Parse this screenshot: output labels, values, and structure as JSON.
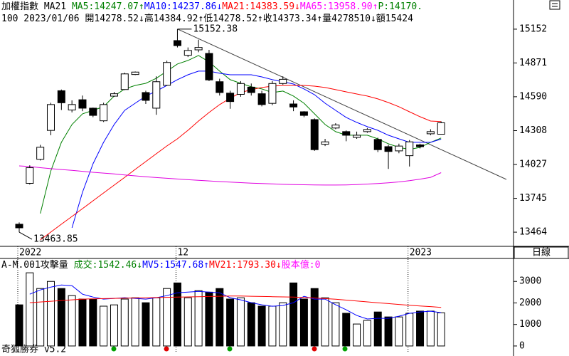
{
  "period": "日線",
  "brand": "奇狐勝券 v5.2",
  "chart_data": [
    {
      "type": "candlestick",
      "header": [
        [
          {
            "text": "加權指數 MA21 ",
            "color": "#000000"
          },
          {
            "text": "MA5:14247.07↑",
            "color": "#008000"
          },
          {
            "text": "MA10:14237.86↓",
            "color": "#0000ff"
          },
          {
            "text": "MA21:14383.59↓",
            "color": "#ff0000"
          },
          {
            "text": "MA65:13958.90↑",
            "color": "#ff00ff"
          },
          {
            "text": "P:14170.",
            "color": "#008000"
          }
        ],
        [
          {
            "text": "100 2023/01/06 開14278.52↓高14384.92↑低14278.52↑收14373.34↑量4278510↓額15424",
            "color": "#000000"
          }
        ]
      ],
      "categories": [
        "2022",
        null,
        null,
        null,
        null,
        null,
        null,
        null,
        null,
        null,
        null,
        null,
        null,
        null,
        null,
        "12",
        null,
        null,
        null,
        null,
        null,
        null,
        null,
        null,
        null,
        null,
        null,
        null,
        null,
        null,
        null,
        null,
        null,
        null,
        null,
        null,
        null,
        "2023",
        null,
        null,
        null
      ],
      "open": [
        13530,
        13870,
        14070,
        14310,
        14640,
        14480,
        14565,
        14495,
        14390,
        14595,
        14650,
        14775,
        14625,
        14495,
        14685,
        15057,
        14935,
        14980,
        14950,
        14715,
        14620,
        14610,
        14670,
        14615,
        14535,
        14700,
        14530,
        14465,
        14400,
        14195,
        14330,
        14300,
        14252,
        14300,
        14235,
        14175,
        14140,
        14100,
        14190,
        14282,
        14278.52
      ],
      "high": [
        13545,
        14020,
        14190,
        14540,
        14650,
        14560,
        14600,
        14500,
        14540,
        14630,
        14790,
        14800,
        14640,
        14760,
        14890,
        15152.38,
        15000,
        15065,
        14980,
        14740,
        14640,
        14720,
        14700,
        14640,
        14720,
        14760,
        14560,
        14470,
        14410,
        14240,
        14370,
        14310,
        14300,
        14330,
        14250,
        14190,
        14200,
        14230,
        14200,
        14320,
        14384.92
      ],
      "low": [
        13463.85,
        13860,
        14060,
        14270,
        14480,
        14460,
        14470,
        14420,
        14380,
        14590,
        14645,
        14770,
        14530,
        14440,
        14680,
        15000,
        14920,
        14960,
        14720,
        14600,
        14490,
        14590,
        14600,
        14510,
        14520,
        14690,
        14470,
        14420,
        14140,
        14180,
        14320,
        14220,
        14240,
        14290,
        14130,
        13990,
        14120,
        14010,
        14160,
        14270,
        14278.52
      ],
      "close": [
        13500,
        14000,
        14170,
        14525,
        14540,
        14525,
        14495,
        14435,
        14525,
        14615,
        14780,
        14795,
        14560,
        14715,
        14875,
        15015,
        14975,
        15000,
        14730,
        14625,
        14550,
        14700,
        14625,
        14525,
        14700,
        14735,
        14505,
        14435,
        14150,
        14215,
        14355,
        14270,
        14270,
        14318,
        14150,
        14135,
        14180,
        14215,
        14175,
        14300,
        14373.34
      ],
      "up_color": "#ffffff",
      "down_color": "#000000",
      "series": [
        {
          "name": "MA5",
          "color": "#008000",
          "values": [
            null,
            null,
            13619,
            13974,
            14211,
            14359,
            14448,
            14477,
            14507,
            14596,
            14655,
            14684,
            14702,
            14744,
            14803,
            14862,
            14892,
            14933,
            14880,
            14803,
            14732,
            14702,
            14673,
            14655,
            14625,
            14637,
            14596,
            14536,
            14448,
            14359,
            14300,
            14270,
            14270,
            14270,
            14240,
            14199,
            14169,
            14152,
            14169,
            14211,
            14247.07
          ]
        },
        {
          "name": "MA10",
          "color": "#0000ff",
          "values": [
            null,
            null,
            null,
            null,
            null,
            13500,
            13796,
            14033,
            14211,
            14359,
            14477,
            14536,
            14596,
            14637,
            14684,
            14732,
            14773,
            14803,
            14803,
            14785,
            14773,
            14773,
            14773,
            14755,
            14732,
            14714,
            14696,
            14655,
            14607,
            14536,
            14477,
            14418,
            14377,
            14341,
            14311,
            14270,
            14240,
            14211,
            14211,
            14211,
            14237.86
          ]
        },
        {
          "name": "MA21",
          "color": "#ff0000",
          "values": [
            null,
            null,
            13400,
            13465,
            13530,
            13595,
            13660,
            13725,
            13790,
            13855,
            13920,
            13986,
            14051,
            14116,
            14181,
            14240,
            14311,
            14388,
            14459,
            14525,
            14578,
            14625,
            14649,
            14667,
            14678,
            14684,
            14684,
            14684,
            14678,
            14667,
            14649,
            14631,
            14613,
            14596,
            14572,
            14542,
            14507,
            14465,
            14424,
            14388,
            14383.59
          ]
        },
        {
          "name": "MA65",
          "color": "#e000e0",
          "values": [
            14015,
            14010,
            14000,
            13992,
            13985,
            13978,
            13970,
            13962,
            13955,
            13948,
            13940,
            13932,
            13925,
            13918,
            13912,
            13906,
            13900,
            13895,
            13890,
            13885,
            13880,
            13876,
            13872,
            13868,
            13865,
            13862,
            13860,
            13858,
            13857,
            13856,
            13856,
            13857,
            13860,
            13864,
            13868,
            13874,
            13882,
            13892,
            13905,
            13920,
            13958.9
          ]
        }
      ],
      "annotations": [
        "15152.38",
        "13463.85"
      ],
      "ylim": [
        13352,
        15276
      ],
      "yticks": [
        15152,
        14871,
        14590,
        14308,
        14027,
        13745,
        13464
      ]
    },
    {
      "type": "bar",
      "header": [
        [
          {
            "text": "A-M.001攻擊量 ",
            "color": "#000000"
          },
          {
            "text": "成交:1542.46↓",
            "color": "#008000"
          },
          {
            "text": "MV5:1547.68↑",
            "color": "#0000ff"
          },
          {
            "text": "MV21:1793.30↓",
            "color": "#ff0000"
          },
          {
            "text": "股本億:0",
            "color": "#ff00ff"
          }
        ]
      ],
      "values": [
        1912,
        3400,
        2670,
        3000,
        2670,
        2340,
        2180,
        2180,
        1850,
        1910,
        2180,
        2240,
        2010,
        2240,
        2670,
        2930,
        2240,
        2570,
        2500,
        2670,
        2180,
        2240,
        2010,
        1850,
        1850,
        2010,
        2930,
        2180,
        2670,
        2240,
        2010,
        1520,
        1020,
        1190,
        1580,
        1350,
        1350,
        1520,
        1620,
        1620,
        1542.46
      ],
      "series": [
        {
          "name": "MV5",
          "color": "#0000ff",
          "values": [
            null,
            2407,
            2605,
            2736,
            2835,
            2802,
            2407,
            2275,
            2176,
            2209,
            2242,
            2209,
            2176,
            2242,
            2341,
            2473,
            2506,
            2539,
            2506,
            2473,
            2242,
            2143,
            2011,
            1912,
            1846,
            1879,
            2011,
            2308,
            2176,
            2176,
            1912,
            1681,
            1418,
            1253,
            1286,
            1286,
            1385,
            1516,
            1583,
            1615,
            1547.68
          ]
        },
        {
          "name": "MV21",
          "color": "#ff0000",
          "values": [
            null,
            2011,
            2044,
            2077,
            2110,
            2143,
            2176,
            2190,
            2200,
            2210,
            2220,
            2230,
            2240,
            2250,
            2260,
            2270,
            2280,
            2290,
            2300,
            2310,
            2320,
            2320,
            2310,
            2300,
            2290,
            2280,
            2270,
            2250,
            2230,
            2200,
            2170,
            2130,
            2090,
            2050,
            2010,
            1970,
            1930,
            1890,
            1860,
            1830,
            1793.3
          ]
        }
      ],
      "ylim": [
        -300,
        4000
      ],
      "yticks": [
        3000,
        2000,
        1000,
        0
      ]
    }
  ]
}
